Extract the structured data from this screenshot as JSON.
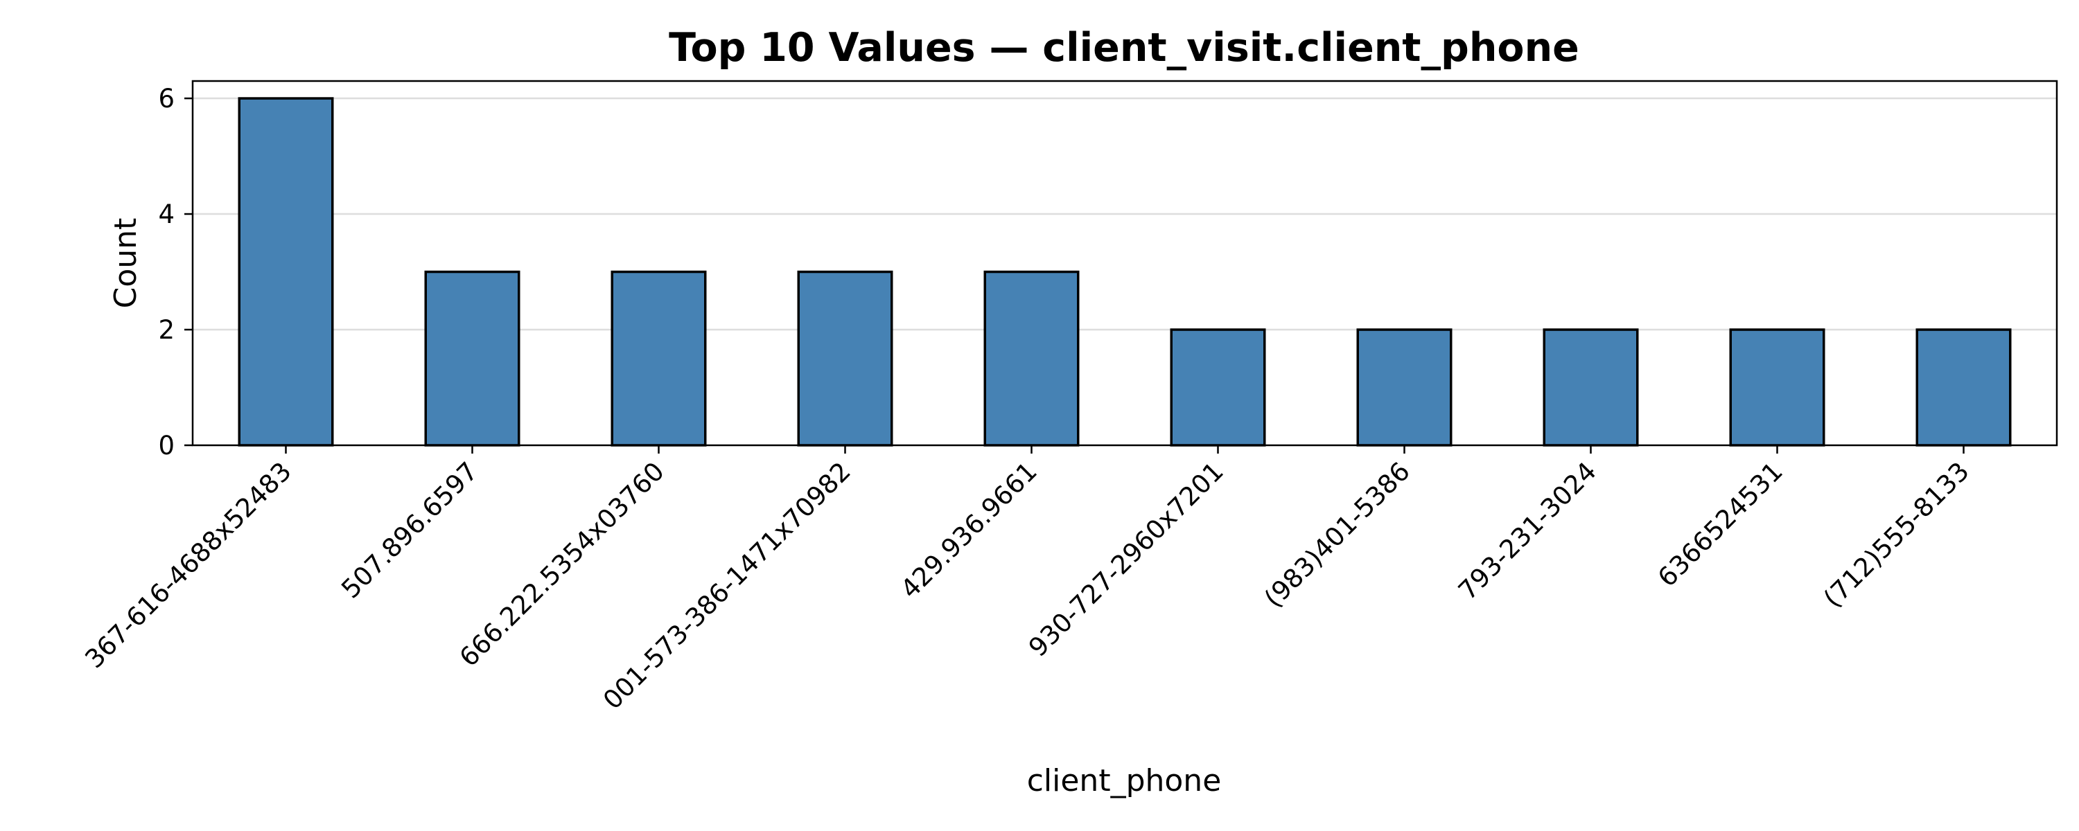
{
  "chart_data": {
    "type": "bar",
    "title": "Top 10 Values — client_visit.client_phone",
    "xlabel": "client_phone",
    "ylabel": "Count",
    "categories": [
      "367-616-4688x52483",
      "507.896.6597",
      "666.222.5354x03760",
      "001-573-386-1471x70982",
      "429.936.9661",
      "930-727-2960x7201",
      "(983)401-5386",
      "793-231-3024",
      "6366524531",
      "(712)555-8133"
    ],
    "values": [
      6,
      3,
      3,
      3,
      3,
      2,
      2,
      2,
      2,
      2
    ],
    "yticks": [
      0,
      2,
      4,
      6
    ],
    "ylim": [
      0,
      6.3
    ],
    "grid": "y",
    "bar_color": "#4682b4",
    "edge_color": "#000000"
  }
}
